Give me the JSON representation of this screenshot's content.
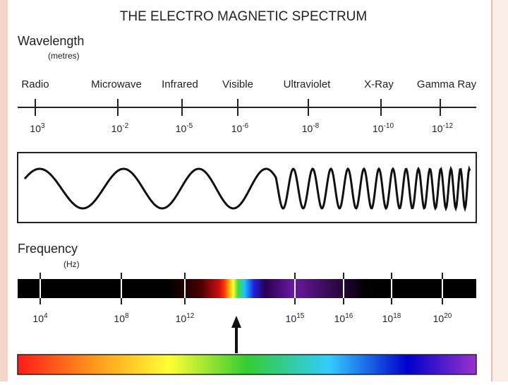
{
  "title": "THE ELECTRO MAGNETIC SPECTRUM",
  "wavelength": {
    "label": "Wavelength",
    "unit": "(metres)",
    "bands": [
      "Radio",
      "Microwave",
      "Infrared",
      "Visible",
      "Ultraviolet",
      "X-Ray",
      "Gamma Ray"
    ],
    "ticks": [
      {
        "base": "10",
        "exp": "3"
      },
      {
        "base": "10",
        "exp": "-2"
      },
      {
        "base": "10",
        "exp": "-5"
      },
      {
        "base": "10",
        "exp": "-6"
      },
      {
        "base": "10",
        "exp": "-8"
      },
      {
        "base": "10",
        "exp": "-10"
      },
      {
        "base": "10",
        "exp": "-12"
      }
    ]
  },
  "frequency": {
    "label": "Frequency",
    "unit": "(Hz)",
    "ticks": [
      {
        "base": "10",
        "exp": "4"
      },
      {
        "base": "10",
        "exp": "8"
      },
      {
        "base": "10",
        "exp": "12"
      },
      {
        "base": "10",
        "exp": "15"
      },
      {
        "base": "10",
        "exp": "16"
      },
      {
        "base": "10",
        "exp": "18"
      },
      {
        "base": "10",
        "exp": "20"
      }
    ]
  }
}
